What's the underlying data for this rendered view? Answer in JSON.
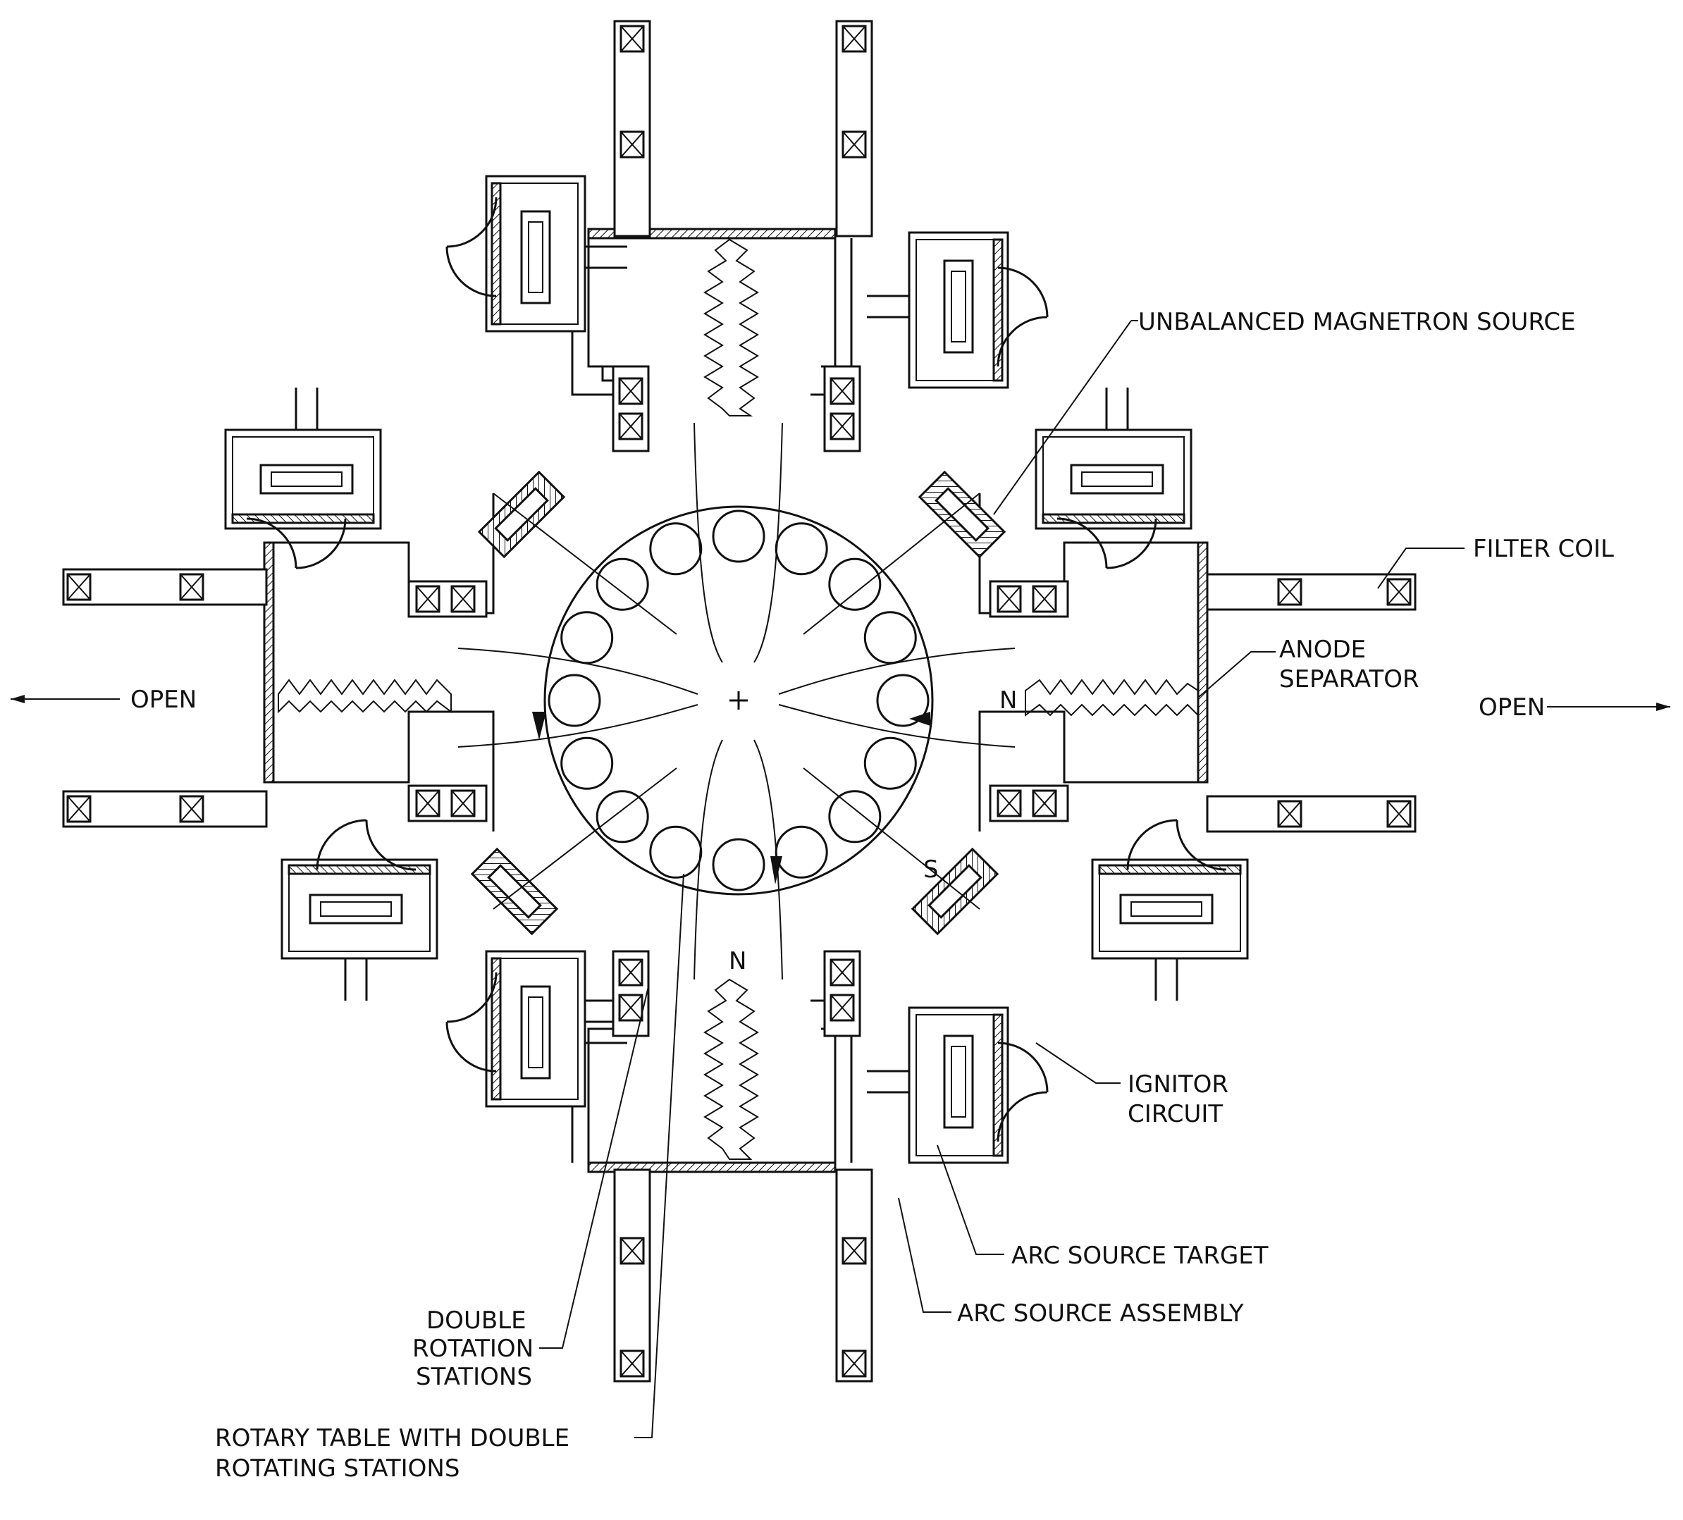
{
  "labels": {
    "unbalanced_magnetron": "UNBALANCED MAGNETRON SOURCE",
    "filter_coil": "FILTER COIL",
    "anode_separator_1": "ANODE",
    "anode_separator_2": "SEPARATOR",
    "open_right": "OPEN",
    "open_left": "OPEN",
    "ignitor_1": "IGNITOR",
    "ignitor_2": "CIRCUIT",
    "arc_source_target": "ARC SOURCE TARGET",
    "arc_source_assembly": "ARC SOURCE ASSEMBLY",
    "double_rotation_1": "DOUBLE",
    "double_rotation_2": "ROTATION",
    "double_rotation_3": "STATIONS",
    "rotary_table_1": "ROTARY TABLE WITH DOUBLE",
    "rotary_table_2": "ROTATING STATIONS",
    "pole_n_right": "N",
    "pole_n_bottom": "N",
    "pole_s": "S"
  },
  "colors": {
    "line": "#111111",
    "background": "#ffffff"
  }
}
